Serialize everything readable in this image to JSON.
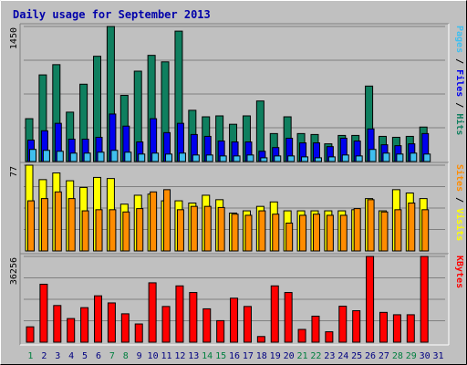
{
  "chart_data": {
    "type": "bar",
    "title": "Daily usage for September 2013",
    "categories": [
      "1",
      "2",
      "3",
      "4",
      "5",
      "6",
      "7",
      "8",
      "9",
      "10",
      "11",
      "12",
      "13",
      "14",
      "15",
      "16",
      "17",
      "18",
      "19",
      "20",
      "21",
      "22",
      "23",
      "24",
      "25",
      "26",
      "27",
      "28",
      "29",
      "30",
      "31"
    ],
    "weekend_categories": [
      "1",
      "7",
      "8",
      "14",
      "15",
      "21",
      "22",
      "28",
      "29"
    ],
    "colors": {
      "hits": "#0f7f5f",
      "files": "#0000ee",
      "pages": "#3fbfef",
      "visits": "#ffff00",
      "sites": "#ff8c00",
      "kbytes": "#ff0000",
      "weekend_label": "#007f3f",
      "weekday_label": "#000080"
    },
    "panels": [
      {
        "id": "hits",
        "max_label": "1450",
        "ylim": [
          0,
          1450
        ],
        "legend": [
          {
            "text": "Pages",
            "color": "#3fbfef"
          },
          {
            "text": " / ",
            "color": "#000000"
          },
          {
            "text": "Files",
            "color": "#0000ee"
          },
          {
            "text": " / ",
            "color": "#000000"
          },
          {
            "text": "Hits",
            "color": "#0f7f5f"
          }
        ],
        "series": [
          {
            "name": "Hits",
            "values": [
              460,
              930,
              1040,
              530,
              830,
              1130,
              1450,
              710,
              970,
              1140,
              1070,
              1400,
              550,
              480,
              490,
              400,
              490,
              650,
              300,
              480,
              300,
              290,
              190,
              280,
              280,
              810,
              270,
              260,
              270,
              370,
              0
            ]
          },
          {
            "name": "Files",
            "values": [
              230,
              330,
              410,
              240,
              240,
              260,
              510,
              380,
              210,
              460,
              310,
              410,
              290,
              270,
              220,
              210,
              210,
              110,
              150,
              250,
              200,
              200,
              160,
              250,
              220,
              350,
              180,
              170,
              190,
              300,
              0
            ]
          },
          {
            "name": "Pages",
            "values": [
              130,
              120,
              110,
              90,
              90,
              100,
              120,
              100,
              80,
              90,
              80,
              90,
              70,
              70,
              60,
              60,
              70,
              40,
              60,
              60,
              50,
              40,
              50,
              70,
              60,
              130,
              90,
              80,
              90,
              80,
              0
            ]
          }
        ]
      },
      {
        "id": "visits",
        "max_label": "77",
        "ylim": [
          0,
          77
        ],
        "legend": [
          {
            "text": "Sites",
            "color": "#ff8c00"
          },
          {
            "text": " / ",
            "color": "#000000"
          },
          {
            "text": "Visits",
            "color": "#ffff00"
          }
        ],
        "series": [
          {
            "name": "Visits",
            "values": [
              77,
              64,
              70,
              63,
              57,
              66,
              65,
              42,
              50,
              51,
              45,
              45,
              43,
              50,
              46,
              34,
              36,
              40,
              44,
              36,
              36,
              36,
              36,
              36,
              37,
              47,
              36,
              55,
              52,
              47,
              0
            ]
          },
          {
            "name": "Sites",
            "values": [
              45,
              47,
              53,
              47,
              36,
              37,
              37,
              35,
              38,
              53,
              55,
              37,
              40,
              40,
              39,
              33,
              32,
              36,
              33,
              25,
              32,
              33,
              32,
              32,
              38,
              46,
              35,
              37,
              43,
              37,
              0
            ]
          }
        ]
      },
      {
        "id": "kbytes",
        "max_label": "36256",
        "ylim": [
          0,
          36256
        ],
        "legend": [
          {
            "text": "KBytes",
            "color": "#ff0000"
          }
        ],
        "series": [
          {
            "name": "KBytes",
            "values": [
              6500,
              24500,
              15500,
              10000,
              14600,
              19600,
              16600,
              12000,
              7700,
              25100,
              15100,
              23800,
              21000,
              14100,
              9100,
              18600,
              15100,
              2400,
              23800,
              21000,
              5400,
              11000,
              4400,
              15200,
              13300,
              36256,
              12600,
              11600,
              11600,
              36256,
              0
            ]
          }
        ]
      }
    ]
  }
}
